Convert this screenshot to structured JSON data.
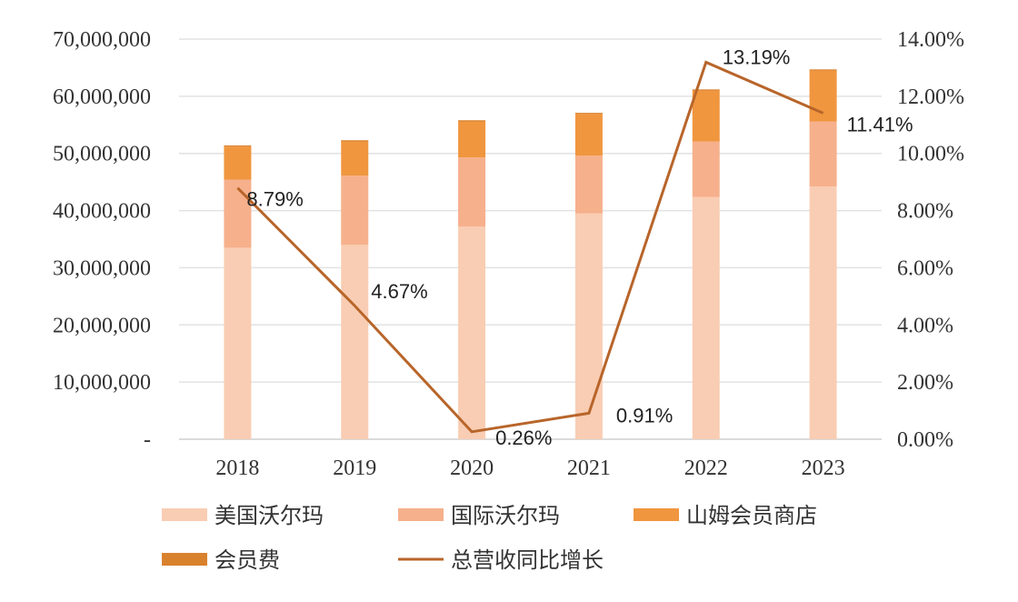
{
  "chart_data": {
    "type": "bar",
    "stacked": true,
    "categories": [
      "2018",
      "2019",
      "2020",
      "2021",
      "2022",
      "2023"
    ],
    "series": [
      {
        "name": "美国沃尔玛",
        "type": "bar",
        "axis": "left",
        "color": "#f9cdb3",
        "values": [
          33500000,
          34000000,
          37200000,
          39500000,
          42400000,
          44200000
        ]
      },
      {
        "name": "国际沃尔玛",
        "type": "bar",
        "axis": "left",
        "color": "#f6b08c",
        "values": [
          11900000,
          12100000,
          12100000,
          10100000,
          9700000,
          11400000
        ]
      },
      {
        "name": "山姆会员商店",
        "type": "bar",
        "axis": "left",
        "color": "#f0963f",
        "values": [
          5800000,
          6000000,
          6300000,
          7300000,
          8900000,
          8900000
        ]
      },
      {
        "name": "会员费",
        "type": "bar",
        "axis": "left",
        "color": "#d9822e",
        "values": [
          200000,
          200000,
          200000,
          200000,
          200000,
          200000
        ]
      },
      {
        "name": "总营收同比增长",
        "type": "line",
        "axis": "right",
        "color": "#b8652a",
        "values": [
          8.79,
          4.67,
          0.26,
          0.91,
          13.19,
          11.41
        ],
        "labels": [
          "8.79%",
          "4.67%",
          "0.26%",
          "0.91%",
          "13.19%",
          "11.41%"
        ]
      }
    ],
    "left_axis": {
      "range": [
        0,
        70000000
      ],
      "ticks": [
        "-",
        "10,000,000",
        "20,000,000",
        "30,000,000",
        "40,000,000",
        "50,000,000",
        "60,000,000",
        "70,000,000"
      ]
    },
    "right_axis": {
      "range": [
        0,
        14
      ],
      "ticks": [
        "0.00%",
        "2.00%",
        "4.00%",
        "6.00%",
        "8.00%",
        "10.00%",
        "12.00%",
        "14.00%"
      ]
    },
    "grid": true,
    "legend": "bottom"
  }
}
